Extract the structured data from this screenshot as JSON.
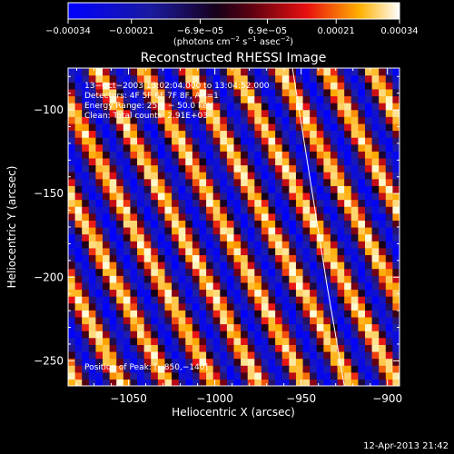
{
  "chart_data": {
    "type": "heatmap",
    "title": "Reconstructed RHESSI Image",
    "xlabel": "Heliocentric X (arcsec)",
    "ylabel": "Heliocentric Y (arcsec)",
    "xlim": [
      -1085,
      -893
    ],
    "ylim": [
      -265,
      -75
    ],
    "xticks": [
      -1050,
      -1000,
      -950,
      -900
    ],
    "yticks": [
      -100,
      -150,
      -200,
      -250
    ],
    "xtick_labels": [
      "−1050",
      "−1000",
      "−950",
      "−900"
    ],
    "ytick_labels": [
      "−100",
      "−150",
      "−200",
      "−250"
    ],
    "colorbar": {
      "range": [
        -0.00034,
        0.00034
      ],
      "ticks": [
        -0.00034,
        -0.00021,
        -6.9e-05,
        6.9e-05,
        0.00021,
        0.00034
      ],
      "tick_labels": [
        "−0.00034",
        "−0.00021",
        "−6.9e−05",
        "6.9e−05",
        "0.00021",
        "0.00034"
      ],
      "label_main": "(photons cm",
      "label_sup1": "−2",
      "label_mid": " s",
      "label_sup2": "−1",
      "label_mid2": " asec",
      "label_sup3": "−2",
      "label_end": ")"
    },
    "annotations": [
      "13−Oct−2003 13:02:04.000 to 13:04:52.000",
      "Detectors: 4F 5F 6F 7F 8F, Att=1",
      "Energy Range: 25.0 − 50.0 keV",
      "Clean:   Total counts: 2.91E+03"
    ],
    "position_label": "Position of Peak: [−850,−140]",
    "limb": [
      [
        -955,
        -75
      ],
      [
        -945,
        -140
      ],
      [
        -935,
        -205
      ],
      [
        -925,
        -265
      ]
    ],
    "stripes": {
      "slope_x_per_y": -0.5,
      "period_x": 26.5,
      "phase_x": -1000
    }
  },
  "footer": {
    "date": "12-Apr-2013 21:42"
  },
  "colors": {
    "background": "#000000",
    "axis": "#ffffff",
    "limb": "#ffffff"
  }
}
